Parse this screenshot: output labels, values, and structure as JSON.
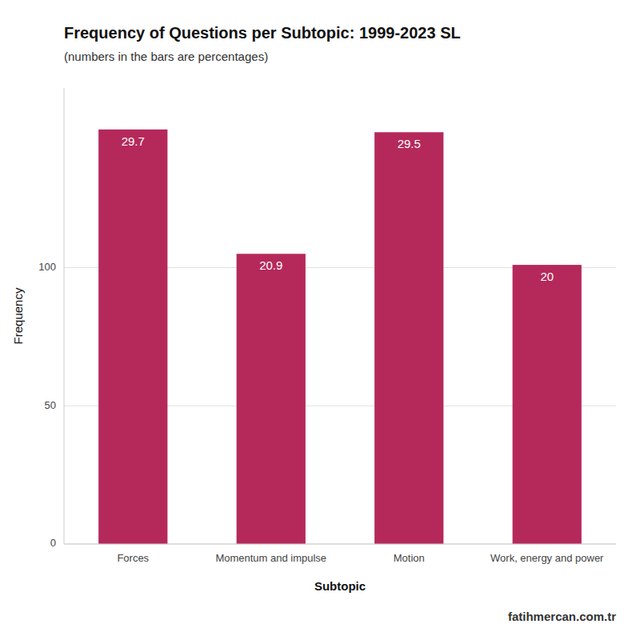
{
  "chart_data": {
    "type": "bar",
    "title": "Frequency of Questions per Subtopic: 1999-2023 SL",
    "subtitle": "(numbers in the bars are percentages)",
    "categories": [
      "Forces",
      "Momentum and impulse",
      "Motion",
      "Work, energy and power"
    ],
    "values": [
      150,
      105,
      149,
      101
    ],
    "percentages": [
      29.7,
      20.9,
      29.5,
      20
    ],
    "color": "#B5295A",
    "xlabel": "Subtopic",
    "ylabel": "Frequency",
    "annotations": [
      "fatihmercan.com.tr"
    ],
    "ylim": [
      0,
      165
    ],
    "yticks": [
      0,
      50,
      100
    ],
    "grid": true
  }
}
